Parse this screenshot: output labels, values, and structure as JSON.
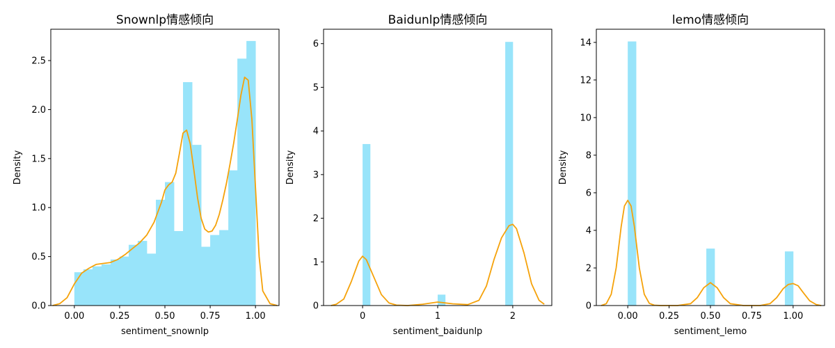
{
  "colors": {
    "bar": "#98e4fa",
    "kde": "#f5a20a",
    "axis": "#000000",
    "background": "#ffffff"
  },
  "chart_data": [
    {
      "type": "bar",
      "title": "Snownlp情感倾向",
      "xlabel": "sentiment_snownlp",
      "ylabel": "Density",
      "xlim": [
        -0.13,
        1.13
      ],
      "ylim": [
        0,
        2.82
      ],
      "xticks": [
        0,
        0.25,
        0.5,
        0.75,
        1.0
      ],
      "xtick_labels": [
        "0.00",
        "0.25",
        "0.50",
        "0.75",
        "1.00"
      ],
      "yticks": [
        0,
        0.5,
        1.0,
        1.5,
        2.0,
        2.5
      ],
      "ytick_labels": [
        "0.0",
        "0.5",
        "1.0",
        "1.5",
        "2.0",
        "2.5"
      ],
      "bins": [
        {
          "x0": 0.0,
          "x1": 0.05,
          "value": 0.34
        },
        {
          "x0": 0.05,
          "x1": 0.1,
          "value": 0.37
        },
        {
          "x0": 0.1,
          "x1": 0.15,
          "value": 0.4
        },
        {
          "x0": 0.15,
          "x1": 0.2,
          "value": 0.42
        },
        {
          "x0": 0.2,
          "x1": 0.25,
          "value": 0.47
        },
        {
          "x0": 0.25,
          "x1": 0.3,
          "value": 0.5
        },
        {
          "x0": 0.3,
          "x1": 0.35,
          "value": 0.62
        },
        {
          "x0": 0.35,
          "x1": 0.4,
          "value": 0.66
        },
        {
          "x0": 0.4,
          "x1": 0.45,
          "value": 0.53
        },
        {
          "x0": 0.45,
          "x1": 0.5,
          "value": 1.08
        },
        {
          "x0": 0.5,
          "x1": 0.55,
          "value": 1.26
        },
        {
          "x0": 0.55,
          "x1": 0.6,
          "value": 0.76
        },
        {
          "x0": 0.6,
          "x1": 0.65,
          "value": 2.28
        },
        {
          "x0": 0.65,
          "x1": 0.7,
          "value": 1.64
        },
        {
          "x0": 0.7,
          "x1": 0.75,
          "value": 0.6
        },
        {
          "x0": 0.75,
          "x1": 0.8,
          "value": 0.72
        },
        {
          "x0": 0.8,
          "x1": 0.85,
          "value": 0.77
        },
        {
          "x0": 0.85,
          "x1": 0.9,
          "value": 1.38
        },
        {
          "x0": 0.9,
          "x1": 0.95,
          "value": 2.52
        },
        {
          "x0": 0.95,
          "x1": 1.0,
          "value": 2.7
        }
      ],
      "kde": {
        "x": [
          -0.12,
          -0.08,
          -0.04,
          0.0,
          0.04,
          0.08,
          0.12,
          0.16,
          0.2,
          0.24,
          0.28,
          0.32,
          0.36,
          0.4,
          0.44,
          0.48,
          0.5,
          0.52,
          0.54,
          0.56,
          0.58,
          0.6,
          0.62,
          0.64,
          0.66,
          0.68,
          0.7,
          0.72,
          0.74,
          0.76,
          0.78,
          0.8,
          0.82,
          0.84,
          0.86,
          0.88,
          0.9,
          0.92,
          0.94,
          0.96,
          0.98,
          1.0,
          1.02,
          1.04,
          1.08,
          1.12
        ],
        "y": [
          0.0,
          0.02,
          0.08,
          0.22,
          0.33,
          0.38,
          0.42,
          0.43,
          0.44,
          0.47,
          0.52,
          0.58,
          0.64,
          0.72,
          0.85,
          1.05,
          1.18,
          1.23,
          1.26,
          1.35,
          1.55,
          1.76,
          1.79,
          1.65,
          1.38,
          1.1,
          0.89,
          0.78,
          0.75,
          0.76,
          0.82,
          0.93,
          1.08,
          1.25,
          1.45,
          1.66,
          1.9,
          2.15,
          2.33,
          2.3,
          1.9,
          1.2,
          0.5,
          0.15,
          0.02,
          0.0
        ]
      }
    },
    {
      "type": "bar",
      "title": "Baidunlp情感倾向",
      "xlabel": "sentiment_baidunlp",
      "ylabel": "Density",
      "xlim": [
        -0.52,
        2.52
      ],
      "ylim": [
        0,
        6.33
      ],
      "xticks": [
        0,
        1,
        2
      ],
      "xtick_labels": [
        "0",
        "1",
        "2"
      ],
      "yticks": [
        0,
        1,
        2,
        3,
        4,
        5,
        6
      ],
      "ytick_labels": [
        "0",
        "1",
        "2",
        "3",
        "4",
        "5",
        "6"
      ],
      "bins": [
        {
          "x0": 0.0,
          "x1": 0.1,
          "value": 3.7
        },
        {
          "x0": 1.0,
          "x1": 1.1,
          "value": 0.25
        },
        {
          "x0": 1.9,
          "x1": 2.0,
          "value": 6.04
        }
      ],
      "kde": {
        "x": [
          -0.42,
          -0.35,
          -0.25,
          -0.15,
          -0.05,
          0.0,
          0.05,
          0.15,
          0.25,
          0.35,
          0.45,
          0.6,
          0.8,
          1.0,
          1.2,
          1.4,
          1.55,
          1.65,
          1.75,
          1.85,
          1.95,
          2.0,
          2.05,
          2.15,
          2.25,
          2.35,
          2.42
        ],
        "y": [
          0.0,
          0.03,
          0.15,
          0.55,
          1.02,
          1.13,
          1.05,
          0.65,
          0.25,
          0.06,
          0.01,
          0.0,
          0.03,
          0.08,
          0.04,
          0.02,
          0.12,
          0.45,
          1.05,
          1.55,
          1.83,
          1.86,
          1.76,
          1.2,
          0.5,
          0.12,
          0.03
        ]
      }
    },
    {
      "type": "bar",
      "title": "lemo情感倾向",
      "xlabel": "sentiment_lemo",
      "ylabel": "Density",
      "xlim": [
        -0.19,
        1.19
      ],
      "ylim": [
        0,
        14.7
      ],
      "xticks": [
        0,
        0.25,
        0.5,
        0.75,
        1.0
      ],
      "xtick_labels": [
        "0.00",
        "0.25",
        "0.50",
        "0.75",
        "1.00"
      ],
      "yticks": [
        0,
        2,
        4,
        6,
        8,
        10,
        12,
        14
      ],
      "ytick_labels": [
        "0",
        "2",
        "4",
        "6",
        "8",
        "10",
        "12",
        "14"
      ],
      "bins": [
        {
          "x0": 0.0,
          "x1": 0.05,
          "value": 14.05
        },
        {
          "x0": 0.475,
          "x1": 0.525,
          "value": 3.03
        },
        {
          "x0": 0.95,
          "x1": 1.0,
          "value": 2.88
        }
      ],
      "kde": {
        "x": [
          -0.16,
          -0.13,
          -0.1,
          -0.07,
          -0.04,
          -0.02,
          0.0,
          0.02,
          0.04,
          0.07,
          0.1,
          0.13,
          0.16,
          0.2,
          0.3,
          0.38,
          0.42,
          0.46,
          0.5,
          0.54,
          0.58,
          0.62,
          0.7,
          0.8,
          0.86,
          0.9,
          0.94,
          0.97,
          1.0,
          1.03,
          1.06,
          1.1,
          1.14,
          1.17
        ],
        "y": [
          0.0,
          0.1,
          0.6,
          2.0,
          4.2,
          5.3,
          5.6,
          5.3,
          4.2,
          2.0,
          0.6,
          0.12,
          0.02,
          0.0,
          0.0,
          0.1,
          0.42,
          0.95,
          1.22,
          0.95,
          0.42,
          0.1,
          0.0,
          0.0,
          0.1,
          0.42,
          0.9,
          1.12,
          1.17,
          1.05,
          0.7,
          0.25,
          0.05,
          0.0
        ]
      }
    }
  ]
}
